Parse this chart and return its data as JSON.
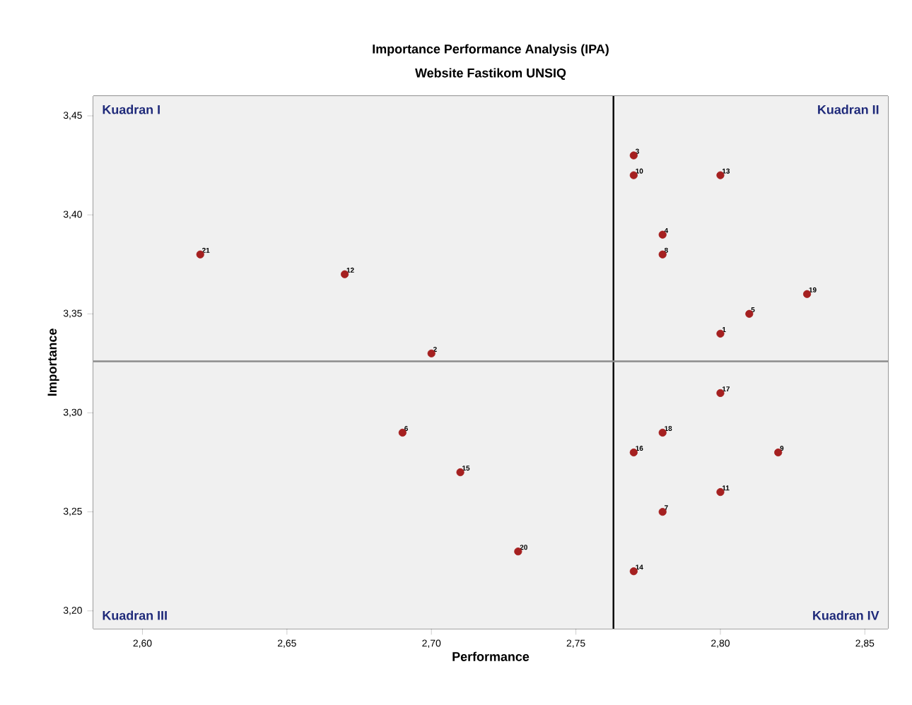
{
  "chart_data": {
    "type": "scatter",
    "title": "Importance Performance Analysis (IPA)",
    "subtitle": "Website Fastikom UNSIQ",
    "xlabel": "Performance",
    "ylabel": "Importance",
    "x": [
      2.8,
      2.7,
      2.77,
      2.78,
      2.81,
      2.69,
      2.78,
      2.78,
      2.82,
      2.77,
      2.8,
      2.67,
      2.8,
      2.77,
      2.71,
      2.77,
      2.8,
      2.78,
      2.83,
      2.73,
      2.62
    ],
    "values": [
      3.34,
      3.33,
      3.43,
      3.39,
      3.35,
      3.29,
      3.25,
      3.38,
      3.28,
      3.42,
      3.26,
      3.37,
      3.42,
      3.22,
      3.27,
      3.28,
      3.31,
      3.29,
      3.36,
      3.23,
      3.38
    ],
    "color": "#a52020",
    "marker": "circle",
    "xlim": [
      2.583,
      2.858
    ],
    "ylim": [
      3.191,
      3.46
    ],
    "xticks": [
      {
        "value": 2.6,
        "label": "2,60"
      },
      {
        "value": 2.65,
        "label": "2,65"
      },
      {
        "value": 2.7,
        "label": "2,70"
      },
      {
        "value": 2.75,
        "label": "2,75"
      },
      {
        "value": 2.8,
        "label": "2,80"
      },
      {
        "value": 2.85,
        "label": "2,85"
      }
    ],
    "yticks": [
      {
        "value": 3.2,
        "label": "3,20"
      },
      {
        "value": 3.25,
        "label": "3,25"
      },
      {
        "value": 3.3,
        "label": "3,30"
      },
      {
        "value": 3.35,
        "label": "3,35"
      },
      {
        "value": 3.4,
        "label": "3,40"
      },
      {
        "value": 3.45,
        "label": "3,45"
      }
    ],
    "ref_lines": [
      {
        "axis": "x",
        "value": 2.763,
        "color": "#000000"
      },
      {
        "axis": "y",
        "value": 3.326,
        "color": "#8c8c8c"
      }
    ],
    "annotations": [
      "Kuadran I",
      "Kuadran II",
      "Kuadran III",
      "Kuadran IV",
      {
        "text": "1",
        "x": 2.8,
        "y": 3.34
      },
      {
        "text": "2",
        "x": 2.7,
        "y": 3.33
      },
      {
        "text": "3",
        "x": 2.77,
        "y": 3.43
      },
      {
        "text": "4",
        "x": 2.78,
        "y": 3.39
      },
      {
        "text": "5",
        "x": 2.81,
        "y": 3.35
      },
      {
        "text": "6",
        "x": 2.69,
        "y": 3.29
      },
      {
        "text": "7",
        "x": 2.78,
        "y": 3.25
      },
      {
        "text": "8",
        "x": 2.78,
        "y": 3.38
      },
      {
        "text": "9",
        "x": 2.82,
        "y": 3.28
      },
      {
        "text": "10",
        "x": 2.77,
        "y": 3.42
      },
      {
        "text": "11",
        "x": 2.8,
        "y": 3.26
      },
      {
        "text": "12",
        "x": 2.67,
        "y": 3.37
      },
      {
        "text": "13",
        "x": 2.8,
        "y": 3.42
      },
      {
        "text": "14",
        "x": 2.77,
        "y": 3.22
      },
      {
        "text": "15",
        "x": 2.71,
        "y": 3.27
      },
      {
        "text": "16",
        "x": 2.77,
        "y": 3.28
      },
      {
        "text": "17",
        "x": 2.8,
        "y": 3.31
      },
      {
        "text": "18",
        "x": 2.78,
        "y": 3.29
      },
      {
        "text": "19",
        "x": 2.83,
        "y": 3.36
      },
      {
        "text": "20",
        "x": 2.73,
        "y": 3.23
      },
      {
        "text": "21",
        "x": 2.62,
        "y": 3.38
      }
    ]
  }
}
